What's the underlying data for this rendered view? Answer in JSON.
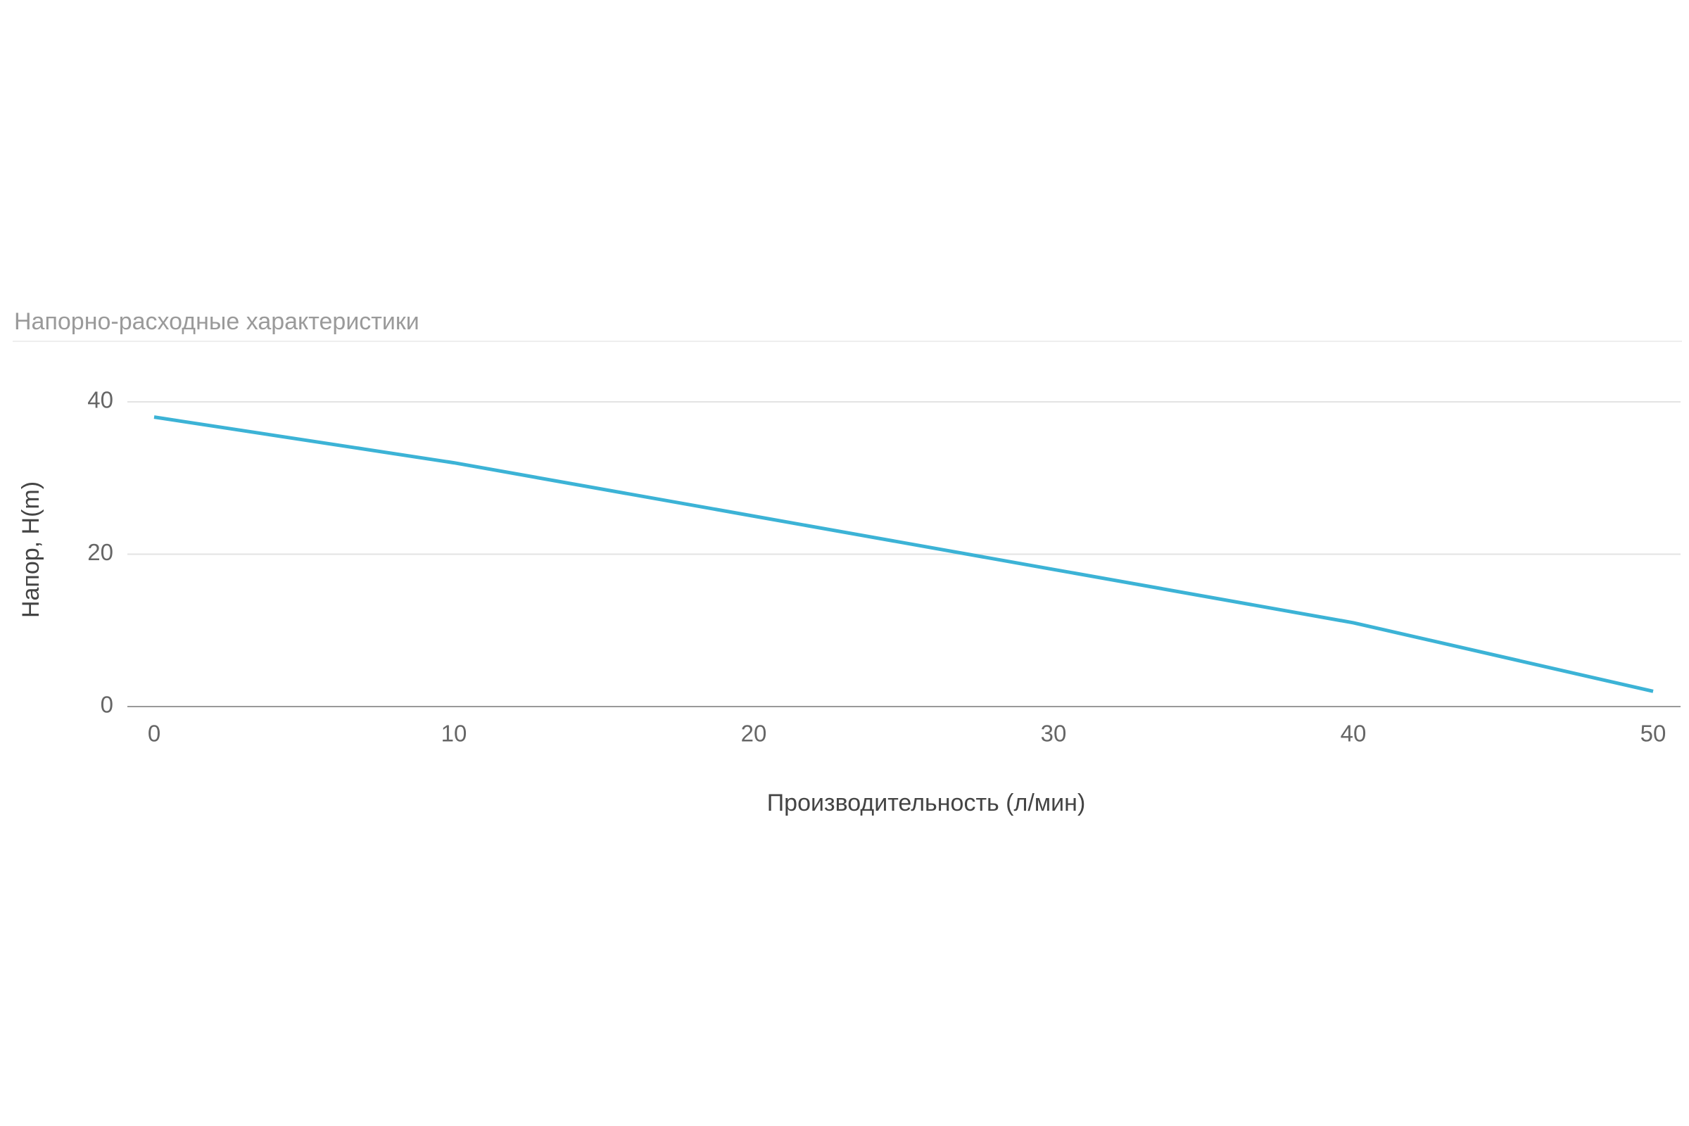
{
  "chart_data": {
    "type": "line",
    "title": "Напорно-расходные характеристики",
    "xlabel": "Производительность (л/мин)",
    "ylabel": "Напор, H(m)",
    "x": [
      0,
      10,
      20,
      30,
      40,
      50
    ],
    "series": [
      {
        "name": "Напор",
        "color": "#3cb3d6",
        "values": [
          38,
          32,
          25,
          18,
          11,
          2
        ]
      }
    ],
    "xlim": [
      0,
      50
    ],
    "xticks": [
      0,
      10,
      20,
      30,
      40,
      50
    ],
    "ylim": [
      0,
      40
    ],
    "yticks": [
      0,
      20,
      40
    ],
    "grid": true
  }
}
